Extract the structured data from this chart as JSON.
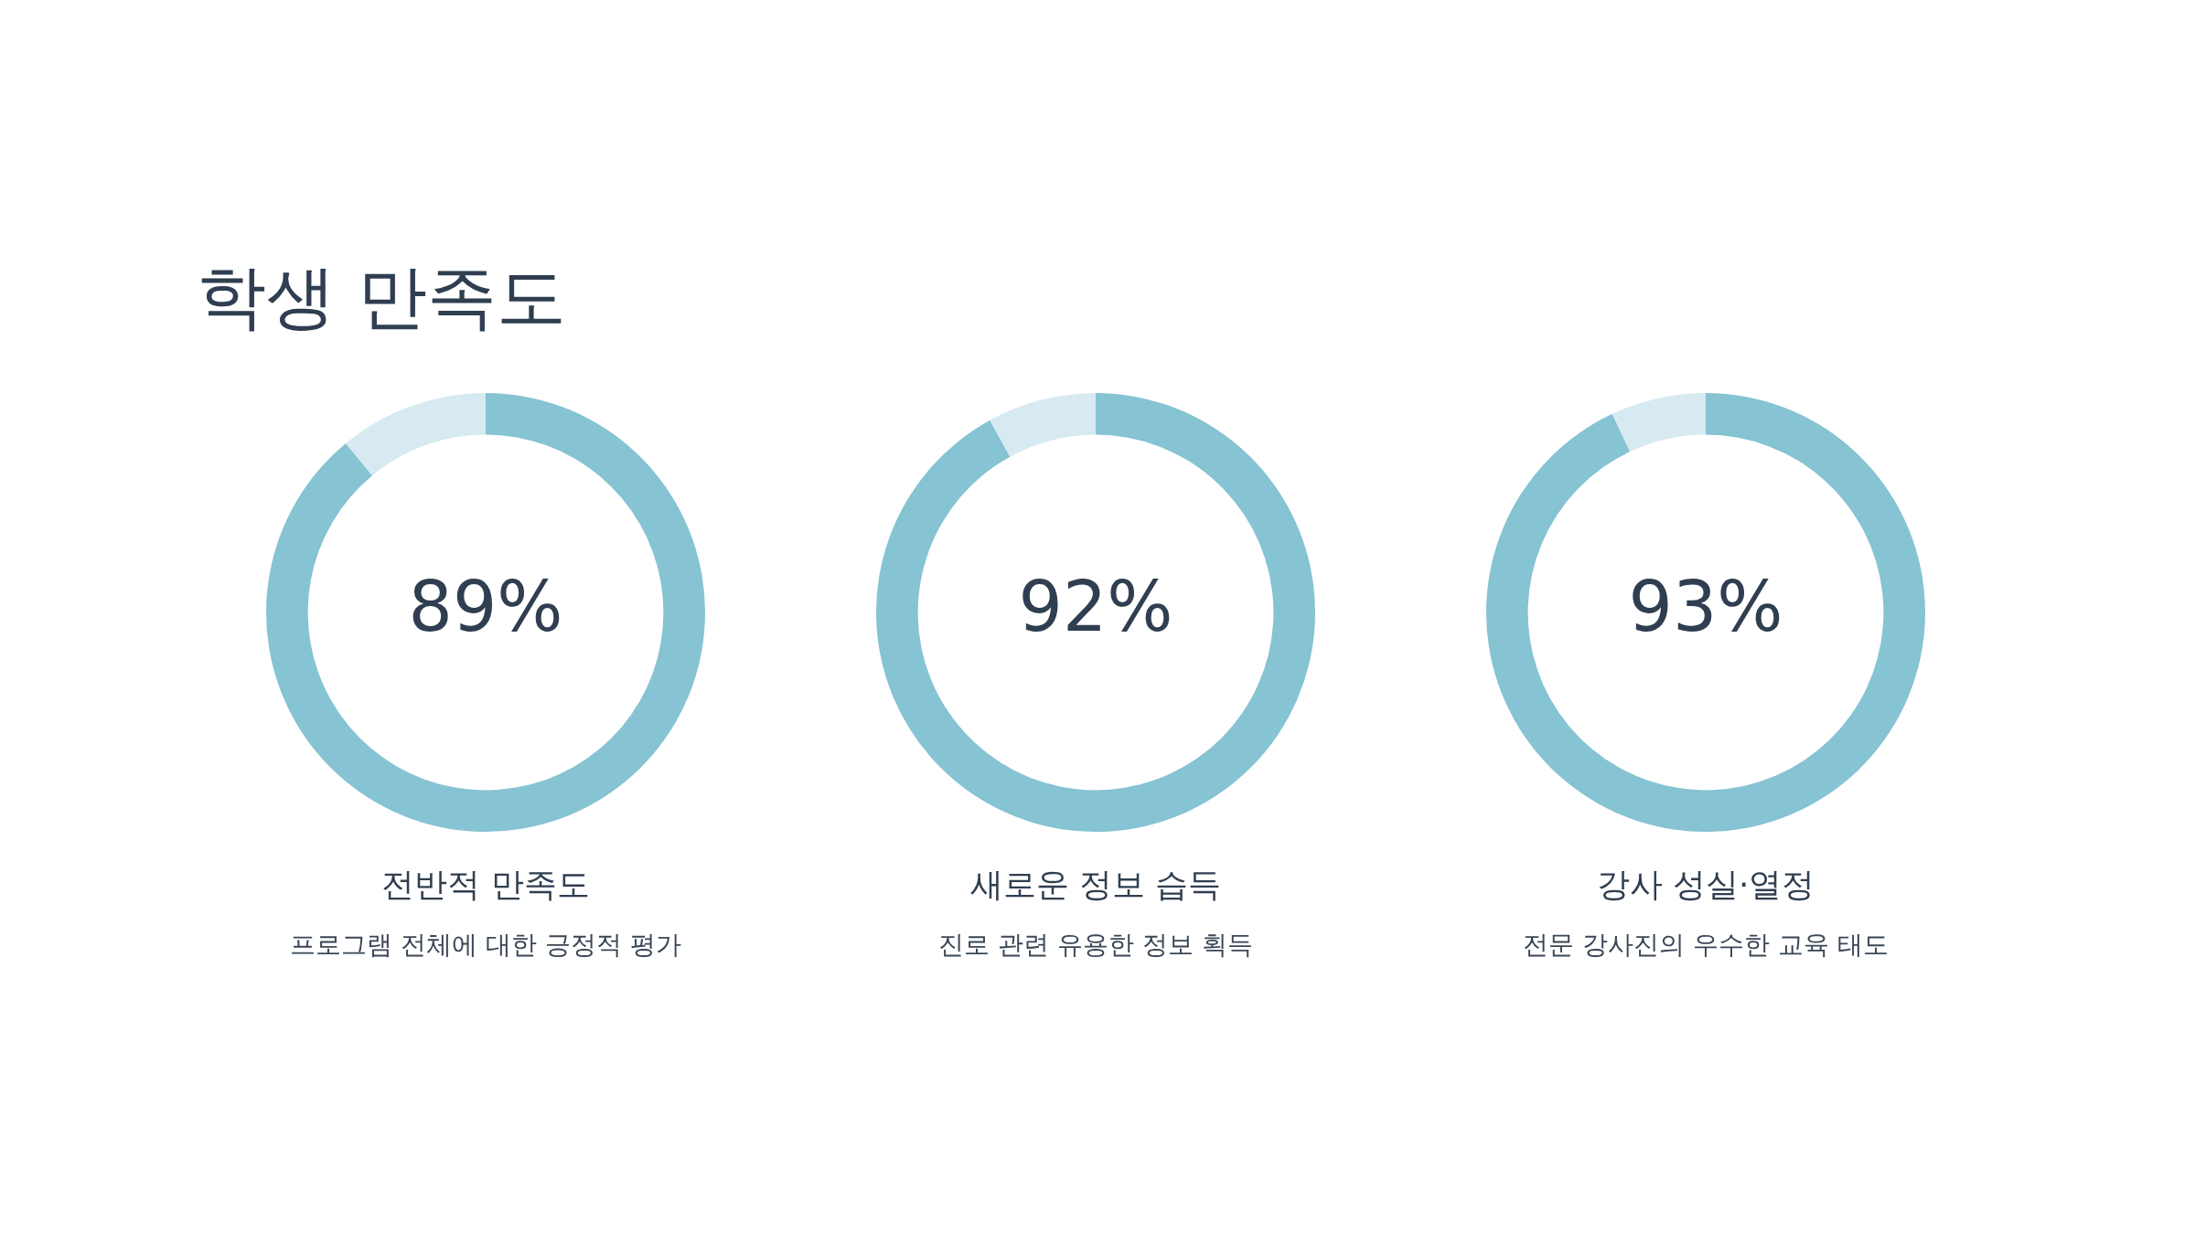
{
  "chart_data": [
    {
      "type": "donut",
      "title": "전반적 만족도",
      "subtitle": "프로그램 전체에 대한 긍정적 평가",
      "annotations": [
        "학생 만족도"
      ],
      "categories": [
        null,
        null
      ],
      "values": [
        89,
        11
      ],
      "colors": [
        "#86c3d3",
        "#d7eaf1"
      ],
      "value_labels": [
        "89%",
        null
      ],
      "legend": false
    },
    {
      "type": "donut",
      "title": "새로운 정보 습득",
      "subtitle": "진로 관련 유용한 정보 획득",
      "categories": [
        null,
        null
      ],
      "values": [
        92,
        8
      ],
      "colors": [
        "#86c3d3",
        "#d7eaf1"
      ],
      "value_labels": [
        "92%",
        null
      ],
      "legend": false
    },
    {
      "type": "donut",
      "title": "강사 성실·열정",
      "subtitle": "전문 강사진의 우수한 교육 태도",
      "categories": [
        null,
        null
      ],
      "values": [
        93,
        7
      ],
      "colors": [
        "#86c3d3",
        "#d7eaf1"
      ],
      "value_labels": [
        "93%",
        null
      ],
      "legend": false
    }
  ]
}
